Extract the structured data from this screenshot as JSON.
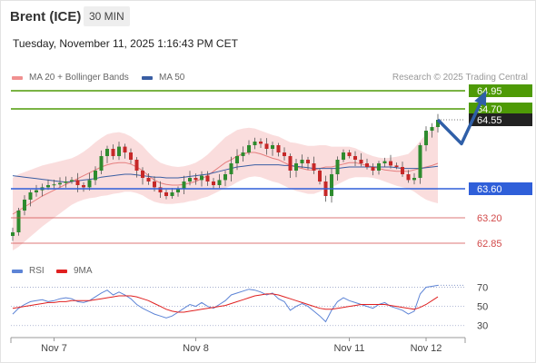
{
  "header": {
    "instrument": "Brent (ICE)",
    "timeframe": "30 MIN",
    "datetime": "Tuesday, November 11, 2025 1:16:43 PM CET",
    "credit": "Research © 2025 Trading Central"
  },
  "legend": {
    "ma20": "MA 20 + Bollinger Bands",
    "ma50": "MA 50",
    "rsi": "RSI",
    "ma9": "9MA"
  },
  "colors": {
    "bollinger": "#f9d7d7",
    "ma20": "#e57e7e",
    "ma50": "#3a5ea3",
    "resistance": "#4e9a06",
    "support": "#d24a4a",
    "pivot": "#2f5fd9",
    "rsi": "#5d84d6",
    "rsi_ma": "#e02020",
    "candle_up": "#2e8b2e",
    "candle_down": "#c62828",
    "last_price": "#222222"
  },
  "chart_data": [
    {
      "type": "candlestick",
      "price_axis_range": [
        62.7,
        65.05
      ],
      "last_price": 64.55,
      "levels": [
        {
          "value": 64.95,
          "label": "64.95",
          "kind": "resistance"
        },
        {
          "value": 64.7,
          "label": "64.70",
          "kind": "resistance"
        },
        {
          "value": 63.6,
          "label": "63.60",
          "kind": "pivot"
        },
        {
          "value": 63.2,
          "label": "63.20",
          "kind": "support"
        },
        {
          "value": 62.85,
          "label": "62.85",
          "kind": "support"
        }
      ],
      "x_ticks": [
        {
          "index": 7,
          "label": "Nov 7"
        },
        {
          "index": 31,
          "label": "Nov 8"
        },
        {
          "index": 57,
          "label": "Nov 11"
        },
        {
          "index": 70,
          "label": "Nov 12"
        }
      ],
      "closes": [
        63.0,
        63.3,
        63.45,
        63.55,
        63.58,
        63.62,
        63.65,
        63.66,
        63.68,
        63.7,
        63.72,
        63.65,
        63.62,
        63.72,
        63.85,
        64.05,
        64.15,
        64.05,
        64.18,
        64.1,
        64.0,
        63.85,
        63.75,
        63.7,
        63.62,
        63.55,
        63.5,
        63.55,
        63.6,
        63.7,
        63.75,
        63.72,
        63.78,
        63.7,
        63.65,
        63.72,
        63.8,
        63.95,
        64.05,
        64.1,
        64.2,
        64.25,
        64.22,
        64.15,
        64.2,
        64.1,
        64.05,
        63.85,
        63.95,
        64.0,
        63.95,
        63.85,
        63.7,
        63.5,
        63.8,
        64.0,
        64.1,
        64.05,
        64.0,
        63.95,
        63.9,
        63.85,
        63.95,
        63.98,
        63.92,
        63.9,
        63.8,
        63.72,
        63.75,
        64.2,
        64.4,
        64.45,
        64.55
      ],
      "ma20": [
        63.25,
        63.3,
        63.35,
        63.4,
        63.45,
        63.5,
        63.54,
        63.58,
        63.62,
        63.66,
        63.7,
        63.74,
        63.78,
        63.82,
        63.86,
        63.9,
        63.93,
        63.95,
        63.96,
        63.96,
        63.94,
        63.9,
        63.85,
        63.78,
        63.72,
        63.68,
        63.66,
        63.65,
        63.65,
        63.66,
        63.68,
        63.7,
        63.74,
        63.78,
        63.84,
        63.9,
        63.96,
        64.0,
        64.05,
        64.08,
        64.1,
        64.1,
        64.08,
        64.05,
        64.02,
        64.0,
        63.96,
        63.92,
        63.9,
        63.88,
        63.86,
        63.86,
        63.88,
        63.9,
        63.9,
        63.92,
        63.94,
        63.96,
        63.96,
        63.94,
        63.92,
        63.9,
        63.88,
        63.86,
        63.85,
        63.84,
        63.84,
        63.84,
        63.86,
        63.88,
        63.9,
        63.92,
        63.95
      ],
      "ma50": [
        63.78,
        63.77,
        63.76,
        63.75,
        63.74,
        63.73,
        63.72,
        63.71,
        63.7,
        63.69,
        63.7,
        63.71,
        63.72,
        63.73,
        63.74,
        63.76,
        63.77,
        63.78,
        63.79,
        63.8,
        63.8,
        63.79,
        63.78,
        63.77,
        63.76,
        63.76,
        63.75,
        63.75,
        63.75,
        63.76,
        63.77,
        63.78,
        63.79,
        63.8,
        63.82,
        63.84,
        63.86,
        63.88,
        63.9,
        63.91,
        63.92,
        63.93,
        63.93,
        63.93,
        63.93,
        63.93,
        63.92,
        63.92,
        63.91,
        63.9,
        63.89,
        63.88,
        63.88,
        63.88,
        63.88,
        63.88,
        63.89,
        63.9,
        63.9,
        63.9,
        63.9,
        63.9,
        63.9,
        63.9,
        63.9,
        63.89,
        63.88,
        63.88,
        63.88,
        63.88,
        63.89,
        63.9,
        63.91
      ],
      "bollinger_width": [
        0.5,
        0.5,
        0.48,
        0.46,
        0.44,
        0.42,
        0.4,
        0.38,
        0.36,
        0.34,
        0.32,
        0.32,
        0.33,
        0.35,
        0.38,
        0.4,
        0.42,
        0.42,
        0.42,
        0.4,
        0.38,
        0.36,
        0.34,
        0.32,
        0.3,
        0.28,
        0.27,
        0.26,
        0.25,
        0.25,
        0.25,
        0.26,
        0.27,
        0.29,
        0.31,
        0.33,
        0.35,
        0.36,
        0.36,
        0.35,
        0.34,
        0.33,
        0.32,
        0.32,
        0.32,
        0.32,
        0.32,
        0.32,
        0.33,
        0.33,
        0.33,
        0.33,
        0.32,
        0.3,
        0.28,
        0.26,
        0.24,
        0.22,
        0.2,
        0.18,
        0.16,
        0.15,
        0.15,
        0.16,
        0.18,
        0.2,
        0.22,
        0.24,
        0.3,
        0.38,
        0.45,
        0.5,
        0.55
      ],
      "forecast": [
        [
          72,
          64.55
        ],
        [
          76,
          64.22
        ],
        [
          80,
          64.92
        ]
      ]
    },
    {
      "type": "line",
      "name": "RSI",
      "y_ticks": [
        70,
        50,
        30
      ],
      "y_range": [
        25,
        80
      ],
      "rsi": [
        42,
        48,
        52,
        55,
        56,
        57,
        55,
        56,
        58,
        59,
        58,
        55,
        54,
        56,
        60,
        64,
        67,
        62,
        65,
        62,
        58,
        52,
        48,
        45,
        42,
        40,
        38,
        40,
        44,
        48,
        52,
        50,
        54,
        50,
        48,
        52,
        56,
        62,
        64,
        66,
        68,
        67,
        65,
        62,
        64,
        58,
        55,
        46,
        50,
        53,
        50,
        45,
        40,
        34,
        46,
        55,
        59,
        56,
        54,
        52,
        50,
        48,
        52,
        54,
        50,
        48,
        46,
        42,
        45,
        63,
        70,
        71,
        72
      ],
      "ma9": [
        48,
        49,
        50,
        51,
        52,
        53,
        54,
        54,
        55,
        55,
        56,
        56,
        56,
        56,
        57,
        58,
        59,
        60,
        61,
        61,
        61,
        60,
        58,
        56,
        53,
        50,
        47,
        45,
        44,
        44,
        45,
        46,
        47,
        48,
        49,
        50,
        51,
        53,
        55,
        57,
        59,
        61,
        62,
        63,
        63,
        62,
        60,
        58,
        56,
        54,
        52,
        50,
        48,
        47,
        47,
        48,
        49,
        50,
        51,
        52,
        52,
        52,
        52,
        52,
        51,
        50,
        49,
        48,
        47,
        49,
        52,
        56,
        60
      ]
    }
  ]
}
